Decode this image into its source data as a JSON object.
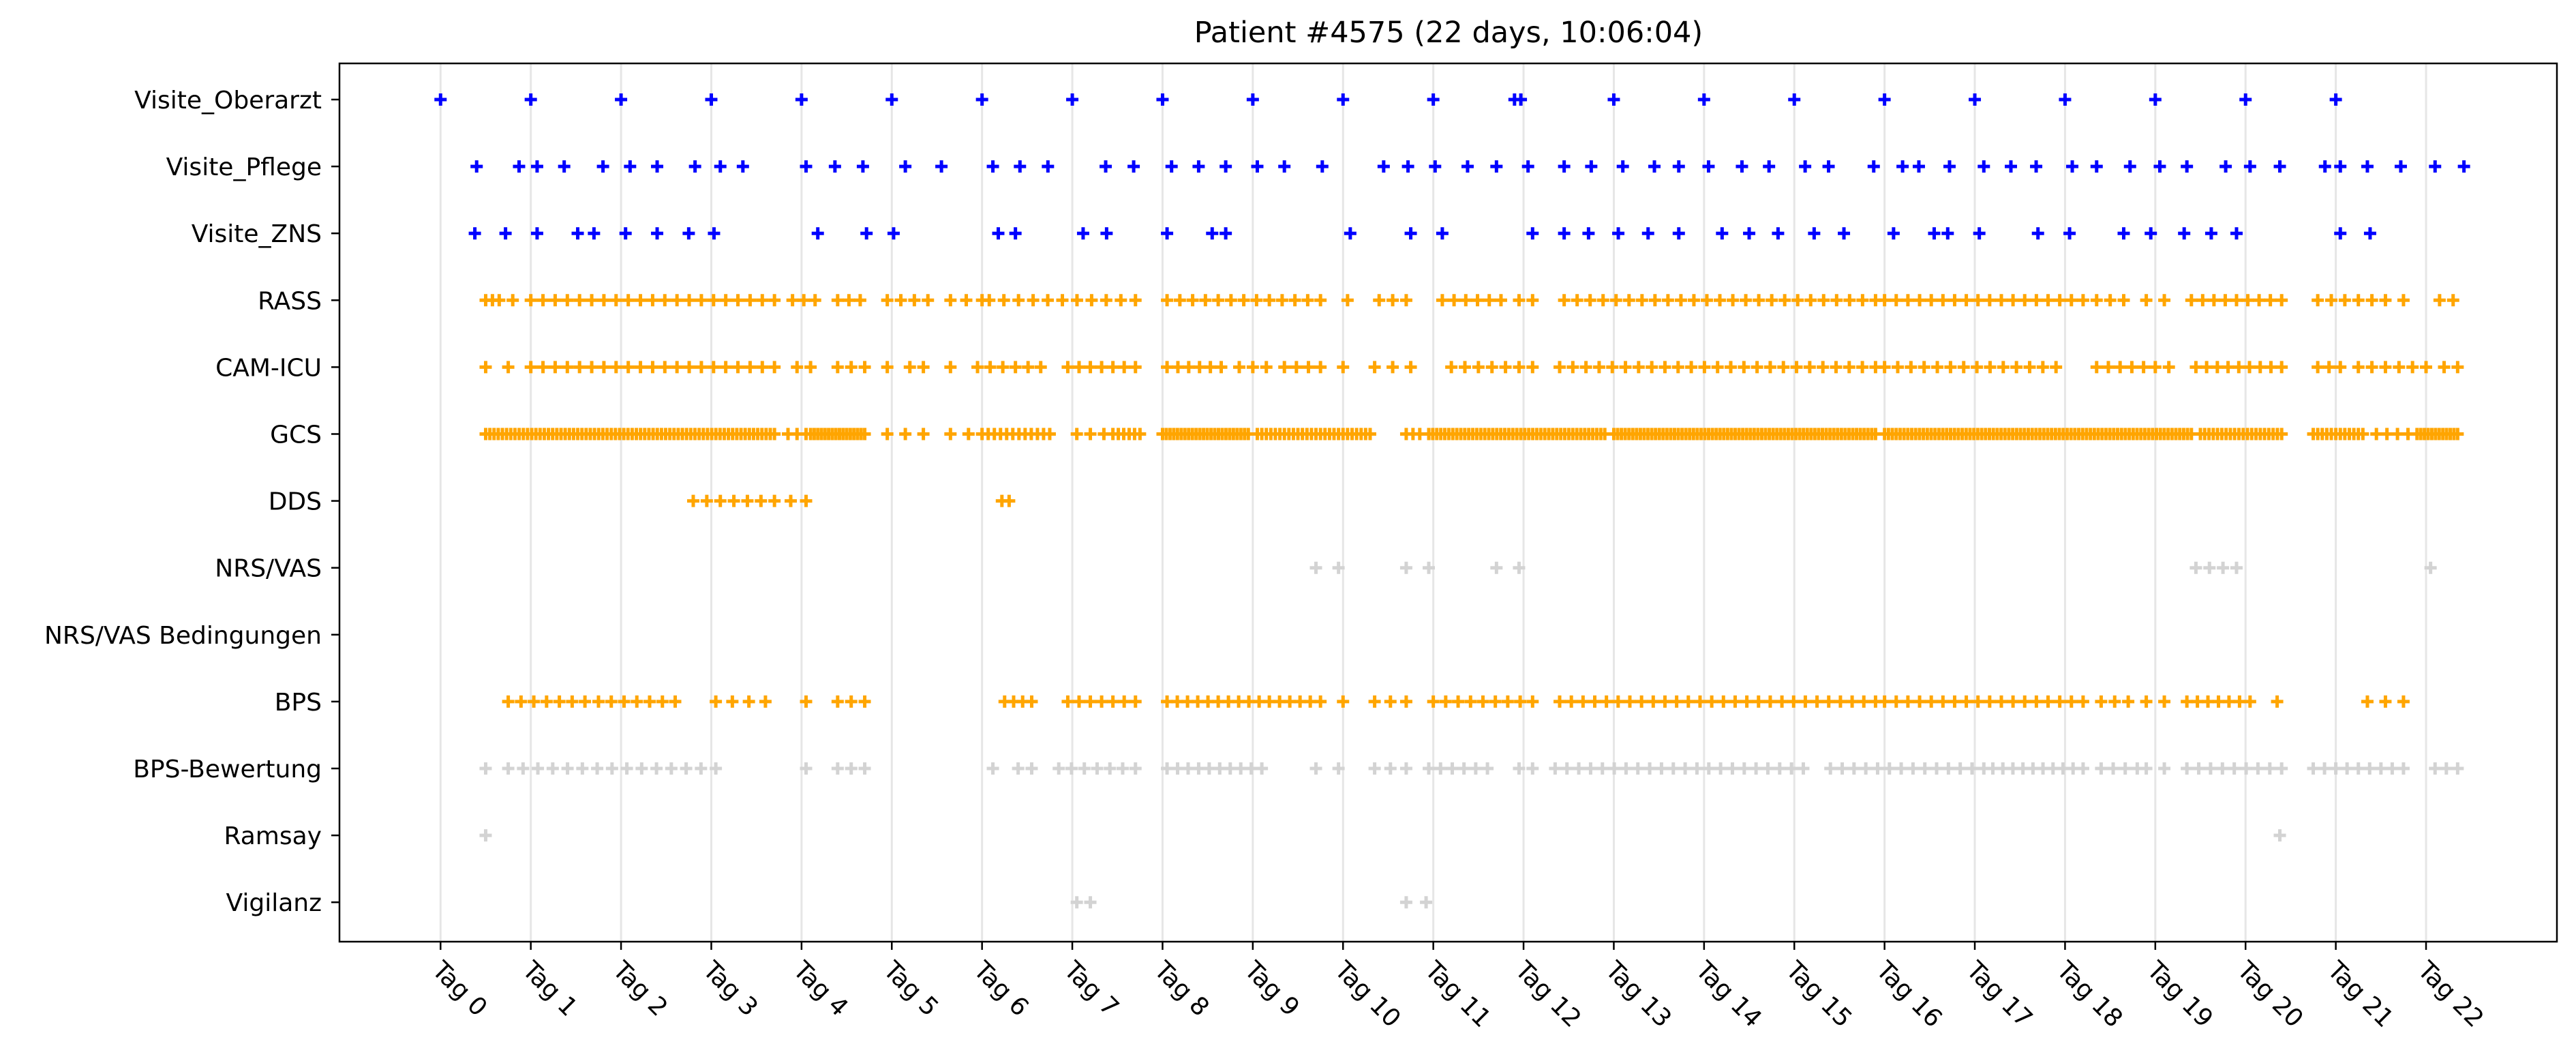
{
  "chart_data": {
    "type": "scatter",
    "title": "Patient #4575 (22 days, 10:06:04)",
    "xlim": [
      -1.12,
      23.45
    ],
    "x_ticks": [
      0,
      1,
      2,
      3,
      4,
      5,
      6,
      7,
      8,
      9,
      10,
      11,
      12,
      13,
      14,
      15,
      16,
      17,
      18,
      19,
      20,
      21,
      22
    ],
    "x_tick_labels": [
      "Tag 0",
      "Tag 1",
      "Tag 2",
      "Tag 3",
      "Tag 4",
      "Tag 5",
      "Tag 6",
      "Tag 7",
      "Tag 8",
      "Tag 9",
      "Tag 10",
      "Tag 11",
      "Tag 12",
      "Tag 13",
      "Tag 14",
      "Tag 15",
      "Tag 16",
      "Tag 17",
      "Tag 18",
      "Tag 19",
      "Tag 20",
      "Tag 21",
      "Tag 22"
    ],
    "grid": "vertical lines at day ticks",
    "marker": "+",
    "categories": [
      "Visite_Oberarzt",
      "Visite_Pflege",
      "Visite_ZNS",
      "RASS",
      "CAM-ICU",
      "GCS",
      "DDS",
      "NRS/VAS",
      "NRS/VAS Bedingungen",
      "BPS",
      "BPS-Bewertung",
      "Ramsay",
      "Vigilanz"
    ],
    "colors": {
      "blue": "#0000ff",
      "orange": "#ffa500",
      "gray": "#d3d3d3"
    },
    "series": [
      {
        "category": "Visite_Oberarzt",
        "color": "blue",
        "x": [
          0,
          1,
          2,
          3,
          4,
          5,
          6,
          7,
          8,
          9,
          10,
          11,
          11.9,
          11.97,
          13,
          14,
          15,
          16,
          17,
          18,
          19,
          20,
          21
        ]
      },
      {
        "category": "Visite_Pflege",
        "color": "blue",
        "x": [
          0.4,
          0.87,
          1.07,
          1.37,
          1.8,
          2.1,
          2.4,
          2.82,
          3.1,
          3.35,
          4.05,
          4.37,
          4.68,
          5.15,
          5.55,
          6.12,
          6.42,
          6.73,
          7.37,
          7.68,
          8.1,
          8.4,
          8.7,
          9.05,
          9.35,
          9.77,
          10.45,
          10.72,
          11.02,
          11.38,
          11.7,
          12.05,
          12.45,
          12.75,
          13.1,
          13.45,
          13.72,
          14.05,
          14.42,
          14.72,
          15.12,
          15.38,
          15.88,
          16.2,
          16.38,
          16.72,
          17.1,
          17.4,
          17.68,
          18.08,
          18.35,
          18.72,
          19.05,
          19.35,
          19.78,
          20.05,
          20.38,
          20.88,
          21.05,
          21.35,
          21.72,
          22.1,
          22.42
        ]
      },
      {
        "category": "Visite_ZNS",
        "color": "blue",
        "x": [
          0.38,
          0.72,
          1.07,
          1.52,
          1.7,
          2.05,
          2.4,
          2.75,
          3.03,
          4.18,
          4.72,
          5.02,
          6.18,
          6.37,
          7.12,
          7.38,
          8.05,
          8.55,
          8.7,
          10.08,
          10.75,
          11.1,
          12.1,
          12.45,
          12.72,
          13.05,
          13.38,
          13.72,
          14.2,
          14.5,
          14.82,
          15.22,
          15.55,
          16.1,
          16.55,
          16.7,
          17.05,
          17.7,
          18.05,
          18.65,
          18.95,
          19.32,
          19.62,
          19.9,
          21.05,
          21.38
        ]
      },
      {
        "category": "RASS",
        "color": "orange",
        "segments": [
          [
            0.5,
            0.65,
            3
          ],
          [
            0.8,
            0.8,
            1
          ],
          [
            1.0,
            3.7,
            21
          ],
          [
            3.9,
            4.15,
            3
          ],
          [
            4.4,
            4.65,
            3
          ],
          [
            4.95,
            5.4,
            4
          ],
          [
            5.65,
            6.0,
            3
          ],
          [
            6.08,
            7.7,
            11
          ],
          [
            8.05,
            9.75,
            13
          ],
          [
            10.05,
            10.05,
            1
          ],
          [
            10.4,
            10.7,
            3
          ],
          [
            11.1,
            11.75,
            6
          ],
          [
            11.95,
            12.1,
            2
          ],
          [
            12.45,
            15.9,
            25
          ],
          [
            16.0,
            18.2,
            18
          ],
          [
            18.35,
            18.65,
            3
          ],
          [
            18.9,
            19.1,
            2
          ],
          [
            19.4,
            20.4,
            9
          ],
          [
            20.8,
            21.55,
            6
          ],
          [
            21.75,
            21.75,
            1
          ],
          [
            22.15,
            22.3,
            2
          ]
        ]
      },
      {
        "category": "CAM-ICU",
        "color": "orange",
        "segments": [
          [
            0.5,
            0.5,
            1
          ],
          [
            0.75,
            0.75,
            1
          ],
          [
            1.0,
            3.7,
            21
          ],
          [
            3.95,
            4.1,
            2
          ],
          [
            4.4,
            4.7,
            3
          ],
          [
            4.95,
            5.2,
            2
          ],
          [
            5.35,
            5.35,
            1
          ],
          [
            5.65,
            5.65,
            1
          ],
          [
            5.95,
            6.65,
            6
          ],
          [
            6.95,
            7.7,
            7
          ],
          [
            8.05,
            8.65,
            6
          ],
          [
            8.85,
            9.15,
            3
          ],
          [
            9.35,
            9.75,
            4
          ],
          [
            10.0,
            10.0,
            1
          ],
          [
            10.35,
            10.55,
            2
          ],
          [
            10.75,
            10.75,
            1
          ],
          [
            11.2,
            12.1,
            7
          ],
          [
            12.4,
            15.9,
            25
          ],
          [
            16.0,
            17.9,
            14
          ],
          [
            18.35,
            19.0,
            6
          ],
          [
            19.15,
            19.15,
            1
          ],
          [
            19.45,
            20.4,
            9
          ],
          [
            20.8,
            21.05,
            3
          ],
          [
            21.25,
            22.0,
            6
          ],
          [
            22.2,
            22.35,
            2
          ]
        ]
      },
      {
        "category": "GCS",
        "color": "orange",
        "segments": [
          [
            0.5,
            3.7,
            70
          ],
          [
            3.85,
            4.05,
            3
          ],
          [
            4.1,
            4.7,
            16
          ],
          [
            4.95,
            5.35,
            3
          ],
          [
            5.65,
            5.85,
            2
          ],
          [
            6.0,
            6.75,
            12
          ],
          [
            7.05,
            7.35,
            3
          ],
          [
            7.45,
            7.75,
            6
          ],
          [
            8.0,
            8.95,
            24
          ],
          [
            9.05,
            10.3,
            26
          ],
          [
            10.7,
            10.85,
            3
          ],
          [
            10.95,
            12.9,
            45
          ],
          [
            13.0,
            15.9,
            70
          ],
          [
            16.0,
            19.4,
            80
          ],
          [
            19.5,
            20.4,
            20
          ],
          [
            20.75,
            21.3,
            12
          ],
          [
            21.45,
            21.8,
            4
          ],
          [
            21.9,
            22.35,
            12
          ]
        ]
      },
      {
        "category": "DDS",
        "color": "orange",
        "x": [
          2.8,
          2.95,
          3.1,
          3.25,
          3.4,
          3.55,
          3.7,
          3.88,
          4.05,
          6.22,
          6.3
        ]
      },
      {
        "category": "NRS/VAS",
        "color": "gray",
        "x": [
          9.7,
          9.95,
          10.7,
          10.95,
          11.7,
          11.95,
          19.45,
          19.6,
          19.75,
          19.9,
          22.05
        ]
      },
      {
        "category": "NRS/VAS Bedingungen",
        "color": "gray",
        "x": []
      },
      {
        "category": "BPS",
        "color": "orange",
        "segments": [
          [
            0.75,
            1.6,
            7
          ],
          [
            1.75,
            2.6,
            7
          ],
          [
            3.05,
            3.6,
            4
          ],
          [
            4.05,
            4.05,
            1
          ],
          [
            4.4,
            4.7,
            3
          ],
          [
            6.25,
            6.55,
            4
          ],
          [
            6.95,
            7.7,
            7
          ],
          [
            8.05,
            9.75,
            16
          ],
          [
            10.0,
            10.0,
            1
          ],
          [
            10.35,
            10.7,
            3
          ],
          [
            11.0,
            12.1,
            9
          ],
          [
            12.4,
            15.9,
            28
          ],
          [
            16.0,
            18.2,
            18
          ],
          [
            18.4,
            18.7,
            3
          ],
          [
            18.9,
            19.1,
            2
          ],
          [
            19.35,
            20.05,
            7
          ],
          [
            20.35,
            20.35,
            1
          ],
          [
            21.35,
            21.75,
            3
          ]
        ]
      },
      {
        "category": "BPS-Bewertung",
        "color": "gray",
        "segments": [
          [
            0.5,
            0.5,
            1
          ],
          [
            0.75,
            3.05,
            15
          ],
          [
            4.05,
            4.05,
            1
          ],
          [
            4.4,
            4.7,
            3
          ],
          [
            6.12,
            6.12,
            1
          ],
          [
            6.4,
            6.55,
            2
          ],
          [
            6.85,
            7.7,
            7
          ],
          [
            8.05,
            9.1,
            10
          ],
          [
            9.7,
            9.95,
            2
          ],
          [
            10.35,
            10.7,
            3
          ],
          [
            10.95,
            11.6,
            6
          ],
          [
            11.95,
            12.1,
            2
          ],
          [
            12.35,
            15.1,
            22
          ],
          [
            15.4,
            17.1,
            14
          ],
          [
            17.2,
            18.2,
            10
          ],
          [
            18.4,
            18.8,
            4
          ],
          [
            18.9,
            19.1,
            2
          ],
          [
            19.35,
            20.4,
            9
          ],
          [
            20.75,
            21.75,
            9
          ],
          [
            22.1,
            22.35,
            3
          ]
        ]
      },
      {
        "category": "Ramsay",
        "color": "gray",
        "x": [
          0.5,
          20.38
        ]
      },
      {
        "category": "Vigilanz",
        "color": "gray",
        "x": [
          7.05,
          7.2,
          10.7,
          10.92
        ]
      }
    ]
  }
}
